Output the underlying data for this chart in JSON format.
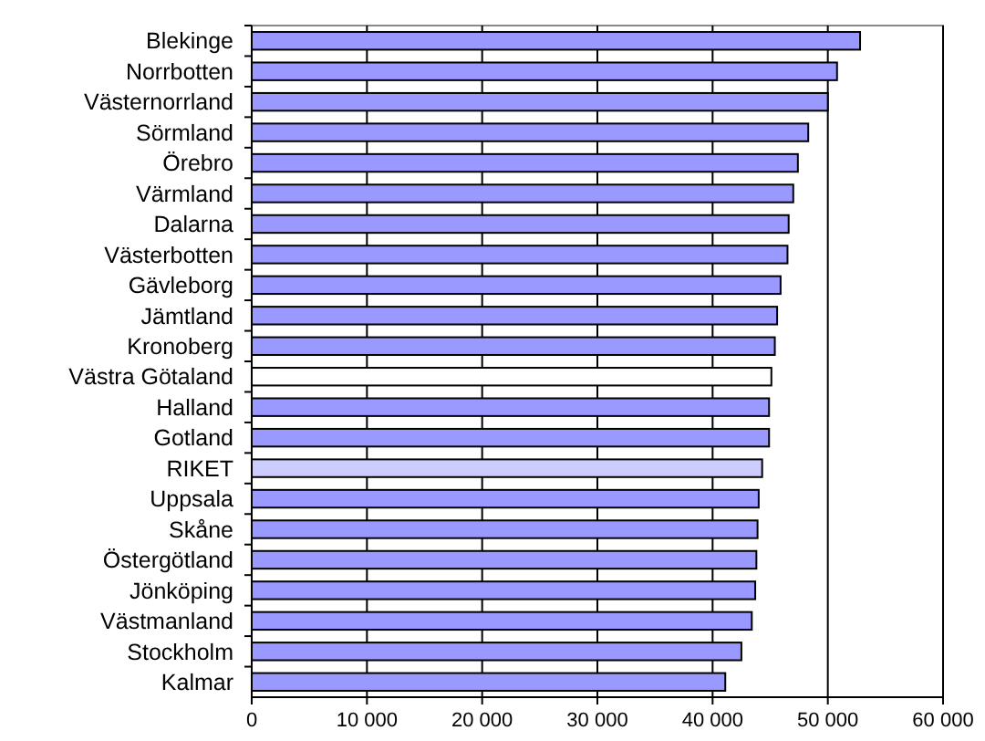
{
  "chart_data": {
    "type": "bar",
    "orientation": "horizontal",
    "categories": [
      "Blekinge",
      "Norrbotten",
      "Västernorrland",
      "Sörmland",
      "Örebro",
      "Värmland",
      "Dalarna",
      "Västerbotten",
      "Gävleborg",
      "Jämtland",
      "Kronoberg",
      "Västra Götaland",
      "Halland",
      "Gotland",
      "RIKET",
      "Uppsala",
      "Skåne",
      "Östergötland",
      "Jönköping",
      "Västmanland",
      "Stockholm",
      "Kalmar"
    ],
    "values": [
      52800,
      50800,
      50000,
      48300,
      47400,
      47000,
      46600,
      46500,
      45900,
      45600,
      45400,
      45100,
      44900,
      44900,
      44300,
      44000,
      43900,
      43800,
      43700,
      43400,
      42500,
      41100
    ],
    "colors": [
      "#9999ff",
      "#9999ff",
      "#9999ff",
      "#9999ff",
      "#9999ff",
      "#9999ff",
      "#9999ff",
      "#9999ff",
      "#9999ff",
      "#9999ff",
      "#9999ff",
      "#ffffff",
      "#9999ff",
      "#9999ff",
      "#ccccff",
      "#9999ff",
      "#9999ff",
      "#9999ff",
      "#9999ff",
      "#9999ff",
      "#9999ff",
      "#9999ff"
    ],
    "xlim": [
      0,
      60000
    ],
    "xticks": [
      0,
      {
        "value": 10000,
        "label": "10 000"
      },
      {
        "value": 20000,
        "label": "20 000"
      },
      {
        "value": 30000,
        "label": "30 000"
      },
      {
        "value": 40000,
        "label": "40 000"
      },
      {
        "value": 50000,
        "label": "50 000"
      },
      {
        "value": 60000,
        "label": "60 000"
      }
    ],
    "grid": "x"
  }
}
